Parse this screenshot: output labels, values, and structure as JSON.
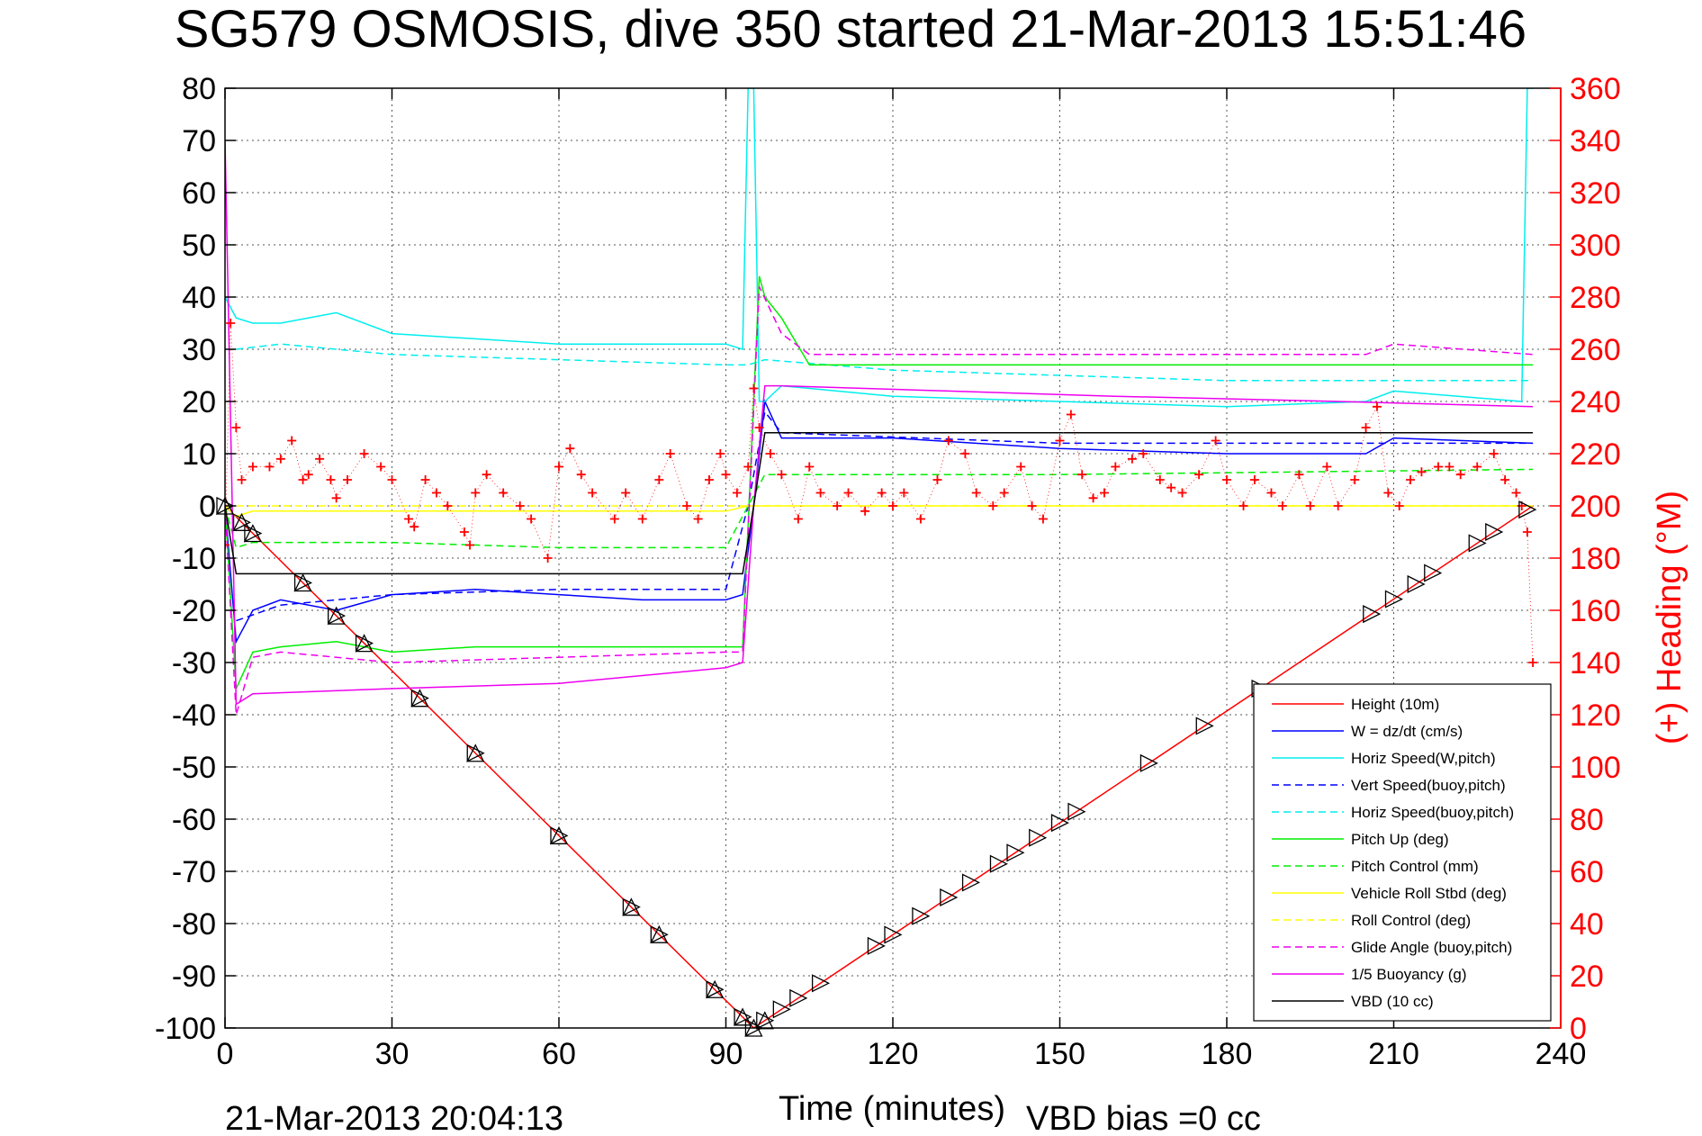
{
  "chart_data": {
    "type": "line",
    "title": "SG579 OSMOSIS, dive 350 started 21-Mar-2013 15:51:46",
    "xlabel": "Time (minutes)",
    "ylabel_right": "(+) Heading (°M)",
    "xlim": [
      0,
      240
    ],
    "ylim": [
      -100,
      80
    ],
    "ylim_right": [
      0,
      360
    ],
    "x_ticks": [
      "0",
      "30",
      "60",
      "90",
      "120",
      "150",
      "180",
      "210",
      "240"
    ],
    "y_ticks": [
      "80",
      "70",
      "60",
      "50",
      "40",
      "30",
      "20",
      "10",
      "0",
      "-10",
      "-20",
      "-30",
      "-40",
      "-50",
      "-60",
      "-70",
      "-80",
      "-90",
      "-100"
    ],
    "y_ticks_right": [
      "360",
      "340",
      "320",
      "300",
      "280",
      "260",
      "240",
      "220",
      "200",
      "180",
      "160",
      "140",
      "120",
      "100",
      "80",
      "60",
      "40",
      "20",
      "0"
    ],
    "grid": true,
    "legend_position": "bottom-right",
    "footer_left": "21-Mar-2013 20:04:13",
    "footer_right": "VBD bias =0 cc",
    "series": [
      {
        "name": "Height (10m)",
        "color": "#ff0000",
        "style": "solid",
        "x": [
          0,
          95,
          235
        ],
        "y": [
          0,
          -100,
          0
        ]
      },
      {
        "name": "W = dz/dt (cm/s)",
        "color": "#0000ff",
        "style": "solid",
        "x": [
          0,
          2,
          5,
          10,
          20,
          30,
          45,
          60,
          75,
          90,
          93,
          95,
          97,
          100,
          120,
          150,
          180,
          205,
          210,
          235
        ],
        "y": [
          0,
          -26,
          -20,
          -18,
          -20,
          -17,
          -16,
          -17,
          -18,
          -18,
          -17,
          0,
          20,
          13,
          13,
          11,
          10,
          10,
          13,
          12
        ]
      },
      {
        "name": "Horiz Speed(W,pitch)",
        "color": "#00eeee",
        "style": "solid",
        "x": [
          0,
          2,
          5,
          10,
          20,
          30,
          45,
          60,
          75,
          90,
          93,
          94,
          95,
          96,
          97,
          100,
          120,
          150,
          180,
          205,
          210,
          233,
          234,
          235
        ],
        "y": [
          40,
          36,
          35,
          35,
          37,
          33,
          32,
          31,
          31,
          31,
          30,
          80,
          80,
          20,
          20,
          23,
          21,
          20,
          19,
          20,
          22,
          20,
          80,
          80
        ]
      },
      {
        "name": "Vert Speed(buoy,pitch)",
        "color": "#0000ff",
        "style": "dashed",
        "x": [
          2,
          10,
          30,
          60,
          90,
          94,
          97,
          100,
          150,
          200,
          235
        ],
        "y": [
          -22,
          -19,
          -17,
          -16,
          -16,
          0,
          18,
          14,
          12,
          12,
          12
        ]
      },
      {
        "name": "Horiz Speed(buoy,pitch)",
        "color": "#00eeee",
        "style": "dashed",
        "x": [
          2,
          10,
          30,
          60,
          90,
          94,
          97,
          120,
          150,
          180,
          210,
          235
        ],
        "y": [
          30,
          31,
          29,
          28,
          27,
          27,
          28,
          26,
          25,
          24,
          24,
          24
        ]
      },
      {
        "name": "Pitch Up (deg)",
        "color": "#00ee00",
        "style": "solid",
        "x": [
          0,
          2,
          5,
          10,
          20,
          30,
          45,
          60,
          75,
          90,
          93,
          96,
          97,
          100,
          105,
          120,
          150,
          180,
          210,
          235
        ],
        "y": [
          0,
          -35,
          -28,
          -27,
          -26,
          -28,
          -27,
          -27,
          -27,
          -27,
          -27,
          44,
          40,
          36,
          27,
          27,
          27,
          27,
          27,
          27
        ]
      },
      {
        "name": "Pitch Control (mm)",
        "color": "#00ee00",
        "style": "dashed",
        "x": [
          0,
          2,
          5,
          10,
          30,
          60,
          90,
          94,
          97,
          150,
          235
        ],
        "y": [
          0,
          -8,
          -7,
          -7,
          -7,
          -8,
          -8,
          0,
          6,
          6,
          7
        ]
      },
      {
        "name": "Vehicle Roll Stbd (deg)",
        "color": "#ffff00",
        "style": "solid",
        "x": [
          0,
          2,
          5,
          10,
          30,
          60,
          90,
          94,
          97,
          120,
          150,
          180,
          210,
          235
        ],
        "y": [
          0,
          -2,
          -1,
          -1,
          -1,
          -1,
          -1,
          0,
          0,
          0,
          0,
          0,
          0,
          0
        ]
      },
      {
        "name": "Roll Control (deg)",
        "color": "#ffff00",
        "style": "dashed",
        "x": [
          0,
          235
        ],
        "y": [
          0,
          0
        ]
      },
      {
        "name": "Glide Angle (buoy,pitch)",
        "color": "#ee00ee",
        "style": "dashed",
        "x": [
          0,
          2,
          5,
          10,
          30,
          60,
          90,
          93,
          96,
          100,
          105,
          150,
          205,
          210,
          235
        ],
        "y": [
          0,
          -40,
          -29,
          -28,
          -30,
          -29,
          -28,
          -28,
          42,
          33,
          29,
          29,
          29,
          31,
          29
        ]
      },
      {
        "name": "1/5 Buoyancy (g)",
        "color": "#ee00ee",
        "style": "solid",
        "x": [
          0,
          2,
          5,
          30,
          60,
          90,
          93,
          95,
          97,
          100,
          130,
          160,
          200,
          235
        ],
        "y": [
          70,
          -38,
          -36,
          -35,
          -34,
          -31,
          -30,
          0,
          23,
          23,
          22,
          21,
          20,
          19
        ]
      },
      {
        "name": "VBD (10 cc)",
        "color": "#000000",
        "style": "solid",
        "x": [
          0,
          2,
          93,
          95,
          97,
          150,
          235
        ],
        "y": [
          0,
          -13,
          -13,
          0,
          14,
          14,
          14
        ]
      }
    ],
    "heading": {
      "name": "(+) Heading",
      "color": "#ff0000",
      "marker": "+",
      "axis": "right",
      "x": [
        0,
        1,
        2,
        3,
        5,
        8,
        10,
        12,
        14,
        15,
        17,
        19,
        20,
        22,
        25,
        28,
        30,
        33,
        34,
        36,
        38,
        40,
        43,
        44,
        45,
        47,
        50,
        53,
        55,
        58,
        60,
        62,
        64,
        66,
        70,
        72,
        75,
        78,
        80,
        83,
        85,
        87,
        89,
        90,
        92,
        94,
        95,
        96,
        98,
        100,
        103,
        105,
        107,
        110,
        112,
        115,
        118,
        120,
        122,
        125,
        128,
        130,
        133,
        135,
        138,
        140,
        143,
        145,
        147,
        150,
        152,
        154,
        156,
        158,
        160,
        163,
        165,
        168,
        170,
        172,
        175,
        178,
        180,
        183,
        185,
        188,
        190,
        193,
        195,
        198,
        200,
        203,
        205,
        207,
        209,
        211,
        213,
        215,
        218,
        220,
        222,
        225,
        228,
        230,
        232,
        233,
        234,
        235
      ],
      "y": [
        185,
        270,
        230,
        210,
        215,
        215,
        218,
        225,
        210,
        212,
        218,
        210,
        203,
        210,
        220,
        215,
        210,
        195,
        192,
        210,
        205,
        200,
        190,
        185,
        205,
        212,
        205,
        200,
        195,
        180,
        215,
        222,
        212,
        205,
        195,
        205,
        195,
        210,
        220,
        200,
        195,
        210,
        220,
        212,
        205,
        215,
        245,
        230,
        220,
        212,
        195,
        215,
        205,
        200,
        205,
        198,
        205,
        200,
        205,
        195,
        210,
        225,
        220,
        205,
        200,
        205,
        215,
        200,
        195,
        225,
        235,
        212,
        203,
        205,
        215,
        218,
        220,
        210,
        207,
        205,
        212,
        225,
        210,
        200,
        210,
        205,
        200,
        212,
        200,
        215,
        200,
        210,
        230,
        238,
        205,
        200,
        210,
        213,
        215,
        215,
        212,
        215,
        220,
        210,
        205,
        200,
        190,
        140
      ]
    },
    "markers": {
      "down_triangle_x": [
        0,
        3,
        5,
        14,
        20,
        25,
        35,
        45,
        60,
        73,
        78,
        88,
        93,
        95,
        97
      ],
      "up_triangle_x": [
        100,
        103,
        107,
        117,
        120,
        125,
        130,
        134,
        139,
        142,
        146,
        150,
        153,
        166,
        176,
        186,
        206,
        210,
        214,
        217,
        225,
        228,
        234
      ]
    }
  }
}
